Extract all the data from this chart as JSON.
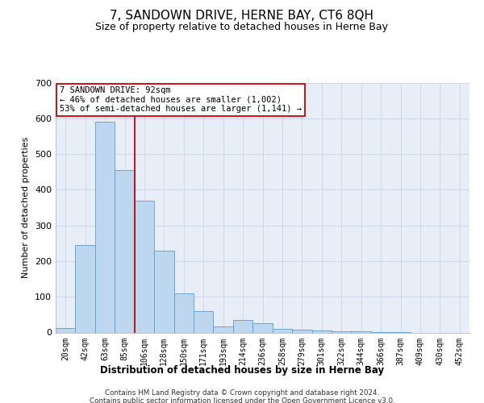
{
  "title": "7, SANDOWN DRIVE, HERNE BAY, CT6 8QH",
  "subtitle": "Size of property relative to detached houses in Herne Bay",
  "xlabel": "Distribution of detached houses by size in Herne Bay",
  "ylabel": "Number of detached properties",
  "footer_line1": "Contains HM Land Registry data © Crown copyright and database right 2024.",
  "footer_line2": "Contains public sector information licensed under the Open Government Licence v3.0.",
  "bar_labels": [
    "20sqm",
    "42sqm",
    "63sqm",
    "85sqm",
    "106sqm",
    "128sqm",
    "150sqm",
    "171sqm",
    "193sqm",
    "214sqm",
    "236sqm",
    "258sqm",
    "279sqm",
    "301sqm",
    "322sqm",
    "344sqm",
    "366sqm",
    "387sqm",
    "409sqm",
    "430sqm",
    "452sqm"
  ],
  "bar_values": [
    12,
    245,
    590,
    455,
    370,
    230,
    110,
    60,
    18,
    35,
    25,
    10,
    8,
    6,
    4,
    3,
    2,
    1,
    0,
    0,
    0
  ],
  "bar_color": "#bdd7ee",
  "bar_edge_color": "#5b9bd5",
  "grid_color": "#c8d4e8",
  "background_color": "#e8eef8",
  "ylim": [
    0,
    700
  ],
  "yticks": [
    0,
    100,
    200,
    300,
    400,
    500,
    600,
    700
  ],
  "annotation_text": "7 SANDOWN DRIVE: 92sqm\n← 46% of detached houses are smaller (1,002)\n53% of semi-detached houses are larger (1,141) →",
  "annotation_box_color": "#ffffff",
  "annotation_box_edge": "#cc0000",
  "vline_x": 3.5,
  "vline_color": "#cc0000",
  "title_fontsize": 11,
  "subtitle_fontsize": 9
}
